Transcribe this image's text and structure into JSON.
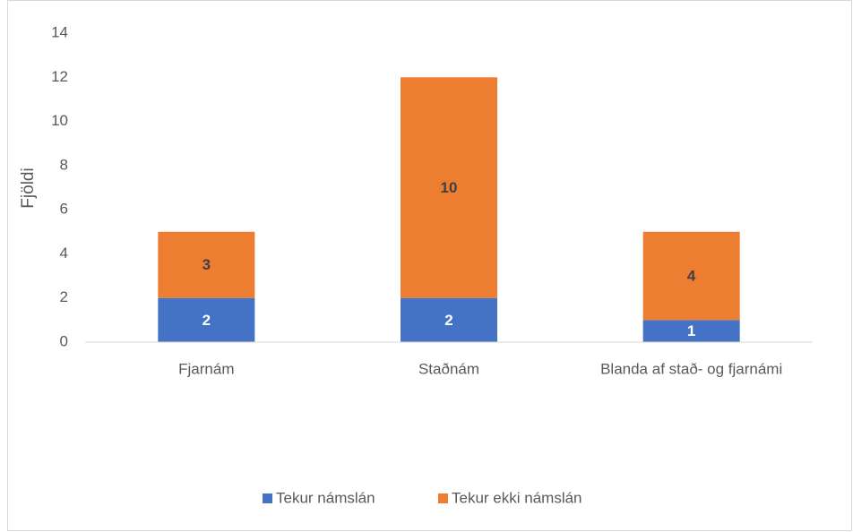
{
  "chart_data": {
    "type": "stacked_bar",
    "y_label": "Fjöldi",
    "categories": [
      "Fjarnám",
      "Staðnám",
      "Blanda af stað- og fjarnámi"
    ],
    "series": [
      {
        "name": "Tekur námslán",
        "color": "#4472c4",
        "values": [
          2,
          2,
          1
        ]
      },
      {
        "name": "Tekur ekki námslán",
        "color": "#ed7d31",
        "values": [
          3,
          10,
          4
        ]
      }
    ],
    "ylim": [
      0,
      14
    ],
    "yticks": [
      0,
      2,
      4,
      6,
      8,
      10,
      12,
      14
    ],
    "grid": false,
    "legend": "bottom"
  }
}
